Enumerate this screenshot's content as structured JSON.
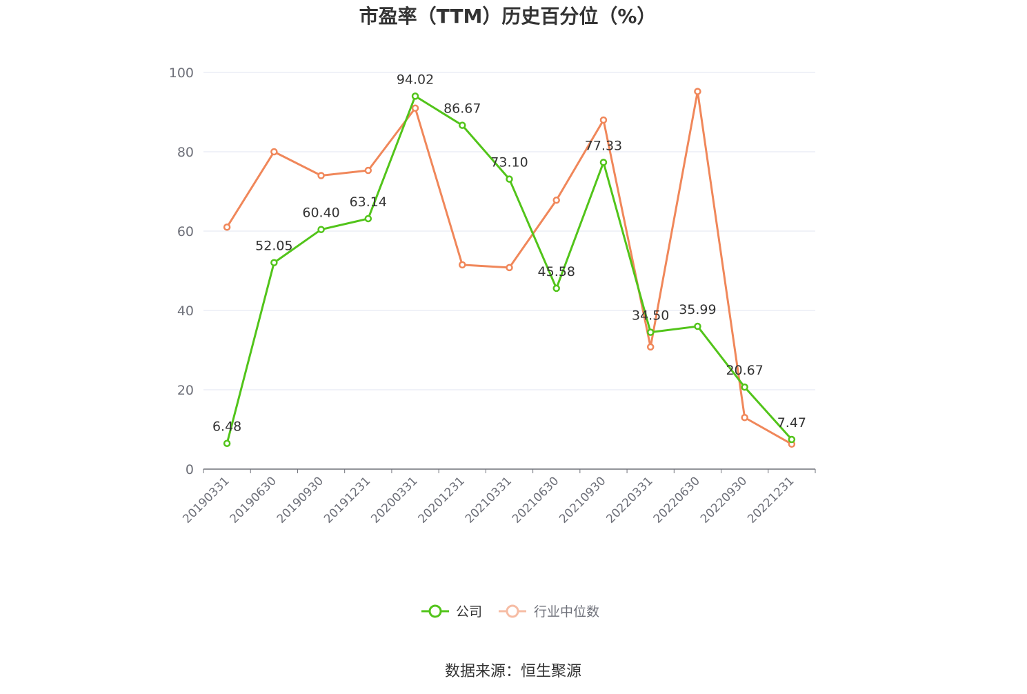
{
  "chart_data": {
    "type": "line",
    "title": "市盈率（TTM）历史百分位（%）",
    "categories": [
      "20190331",
      "20190630",
      "20190930",
      "20191231",
      "20200331",
      "20201231",
      "20210331",
      "20210630",
      "20210930",
      "20220331",
      "20220630",
      "20220930",
      "20221231"
    ],
    "ylim": [
      0,
      100
    ],
    "yticks": [
      0,
      20,
      40,
      60,
      80,
      100
    ],
    "grid": true,
    "legend_position": "bottom",
    "series": [
      {
        "name": "公司",
        "color": "#52c41a",
        "values": [
          6.48,
          52.05,
          60.4,
          63.14,
          94.02,
          86.67,
          73.1,
          45.58,
          77.33,
          34.5,
          35.99,
          20.67,
          7.47
        ],
        "labels": [
          "6.48",
          "52.05",
          "60.40",
          "63.14",
          "94.02",
          "86.67",
          "73.10",
          "45.58",
          "77.33",
          "34.50",
          "35.99",
          "20.67",
          "7.47"
        ]
      },
      {
        "name": "行业中位数",
        "color": "#f0875a",
        "values": [
          61,
          80,
          74,
          75.3,
          91,
          51.5,
          50.8,
          67.8,
          88,
          30.8,
          95.2,
          13,
          6.3
        ]
      }
    ],
    "source": "数据来源：恒生聚源"
  }
}
